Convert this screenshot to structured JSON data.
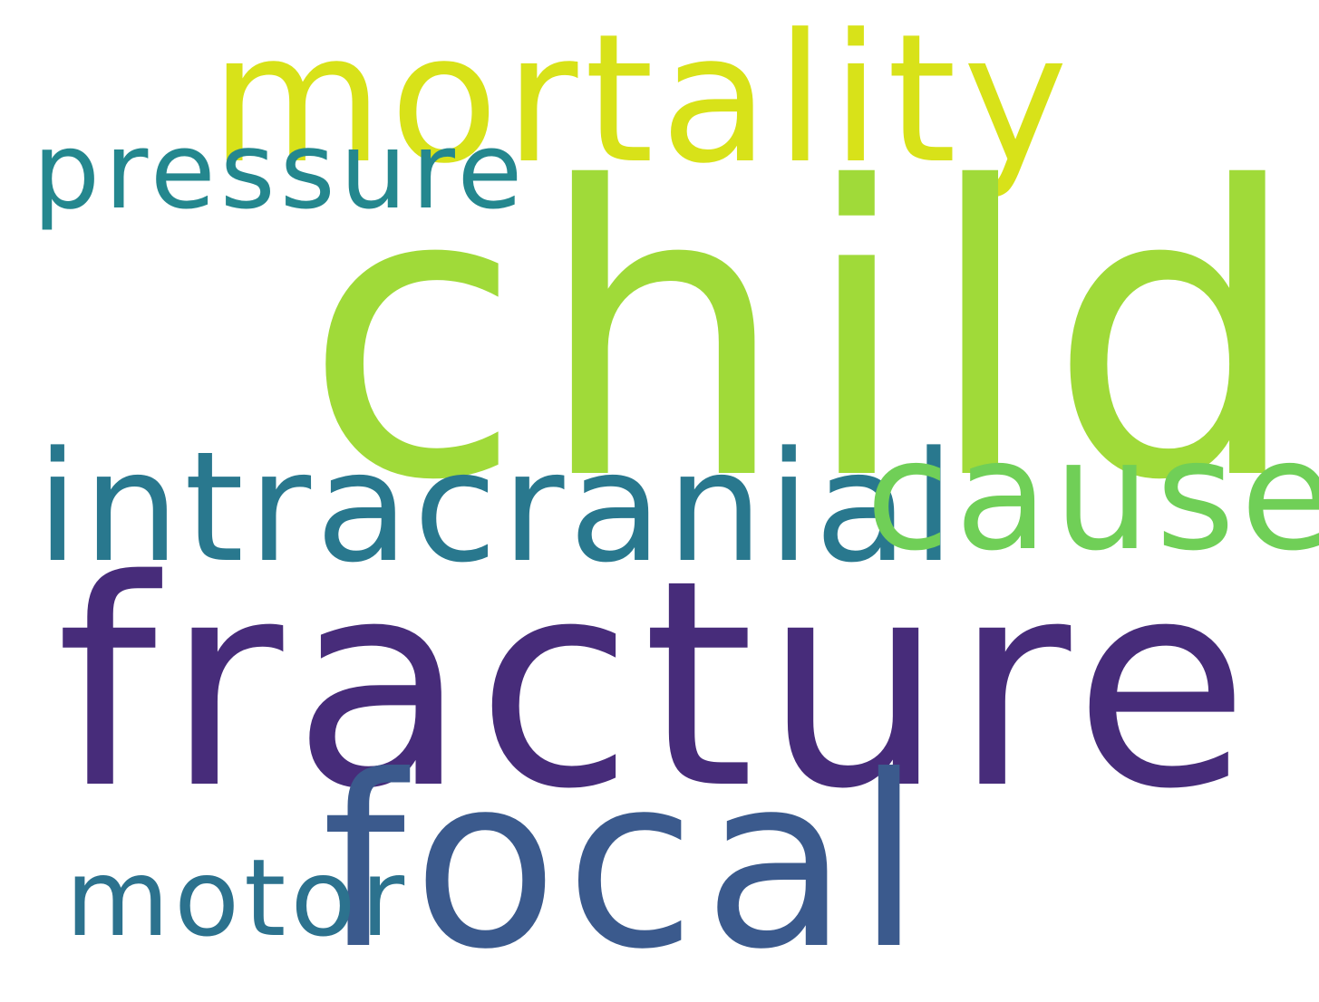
{
  "word_cloud": {
    "background": "#ffffff",
    "words": [
      {
        "id": "mortality",
        "text": "mortality",
        "color": "#d8e219"
      },
      {
        "id": "pressure",
        "text": "pressure",
        "color": "#24878e"
      },
      {
        "id": "child",
        "text": "child",
        "color": "#a0da39"
      },
      {
        "id": "intracranial",
        "text": "intracranial",
        "color": "#29788e"
      },
      {
        "id": "cause",
        "text": "cause",
        "color": "#70cf57"
      },
      {
        "id": "fracture",
        "text": "fracture",
        "color": "#472c7a"
      },
      {
        "id": "focal",
        "text": "focal",
        "color": "#3b5a8d"
      },
      {
        "id": "motor",
        "text": "motor",
        "color": "#2c728e"
      }
    ]
  }
}
